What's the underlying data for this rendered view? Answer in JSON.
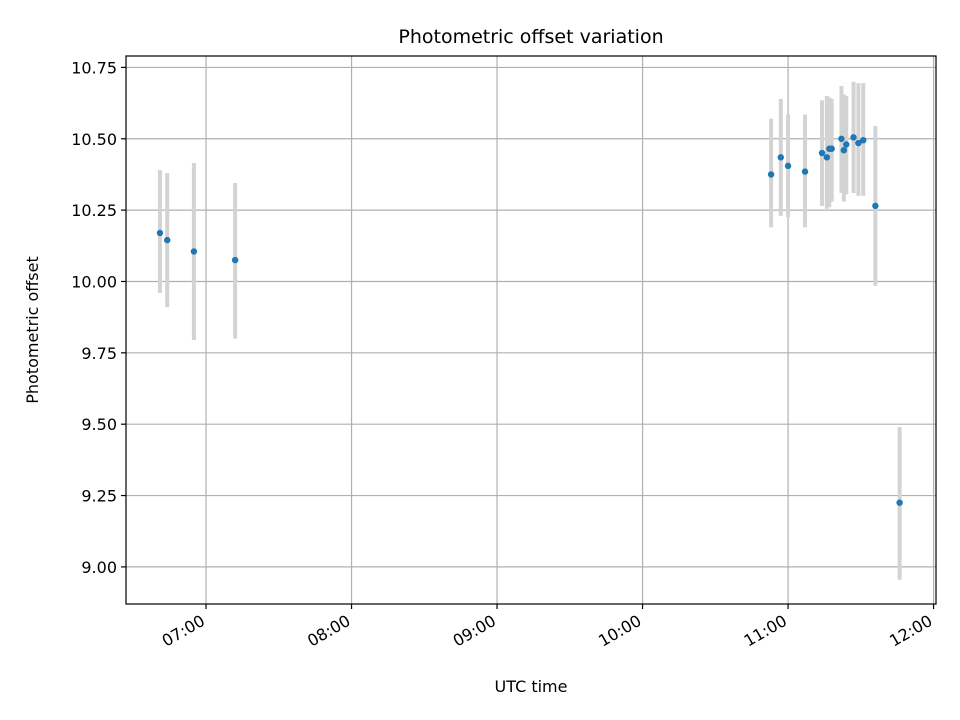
{
  "chart_data": {
    "type": "scatter",
    "title": "Photometric offset variation",
    "xlabel": "UTC time",
    "ylabel": "Photometric offset",
    "x_axis": {
      "kind": "time",
      "range": [
        "06:27",
        "12:01"
      ],
      "ticks": [
        "07:00",
        "08:00",
        "09:00",
        "10:00",
        "11:00",
        "12:00"
      ]
    },
    "y_axis": {
      "range": [
        8.87,
        10.79
      ],
      "ticks": [
        9.0,
        9.25,
        9.5,
        9.75,
        10.0,
        10.25,
        10.5,
        10.75
      ],
      "tick_labels": [
        "9.00",
        "9.25",
        "9.50",
        "9.75",
        "10.00",
        "10.25",
        "10.50",
        "10.75"
      ]
    },
    "grid": true,
    "marker_color": "#1f77b4",
    "errorbar_color": "#d3d3d3",
    "points": [
      {
        "t": "06:41",
        "y": 10.17,
        "lo": 9.96,
        "hi": 10.39
      },
      {
        "t": "06:44",
        "y": 10.145,
        "lo": 9.91,
        "hi": 10.38
      },
      {
        "t": "06:55",
        "y": 10.105,
        "lo": 9.795,
        "hi": 10.415
      },
      {
        "t": "07:12",
        "y": 10.075,
        "lo": 9.8,
        "hi": 10.345
      },
      {
        "t": "10:53",
        "y": 10.375,
        "lo": 10.19,
        "hi": 10.57
      },
      {
        "t": "10:57",
        "y": 10.435,
        "lo": 10.23,
        "hi": 10.64
      },
      {
        "t": "11:00",
        "y": 10.405,
        "lo": 10.225,
        "hi": 10.585
      },
      {
        "t": "11:07",
        "y": 10.385,
        "lo": 10.19,
        "hi": 10.585
      },
      {
        "t": "11:14",
        "y": 10.45,
        "lo": 10.265,
        "hi": 10.635
      },
      {
        "t": "11:16",
        "y": 10.435,
        "lo": 10.255,
        "hi": 10.65
      },
      {
        "t": "11:17",
        "y": 10.465,
        "lo": 10.26,
        "hi": 10.645
      },
      {
        "t": "11:18",
        "y": 10.465,
        "lo": 10.28,
        "hi": 10.64
      },
      {
        "t": "11:22",
        "y": 10.5,
        "lo": 10.31,
        "hi": 10.685
      },
      {
        "t": "11:23",
        "y": 10.46,
        "lo": 10.28,
        "hi": 10.655
      },
      {
        "t": "11:24",
        "y": 10.48,
        "lo": 10.305,
        "hi": 10.65
      },
      {
        "t": "11:27",
        "y": 10.505,
        "lo": 10.31,
        "hi": 10.7
      },
      {
        "t": "11:29",
        "y": 10.485,
        "lo": 10.3,
        "hi": 10.695
      },
      {
        "t": "11:31",
        "y": 10.495,
        "lo": 10.3,
        "hi": 10.695
      },
      {
        "t": "11:36",
        "y": 10.265,
        "lo": 9.985,
        "hi": 10.545
      },
      {
        "t": "11:46",
        "y": 9.225,
        "lo": 8.955,
        "hi": 9.49
      }
    ]
  }
}
